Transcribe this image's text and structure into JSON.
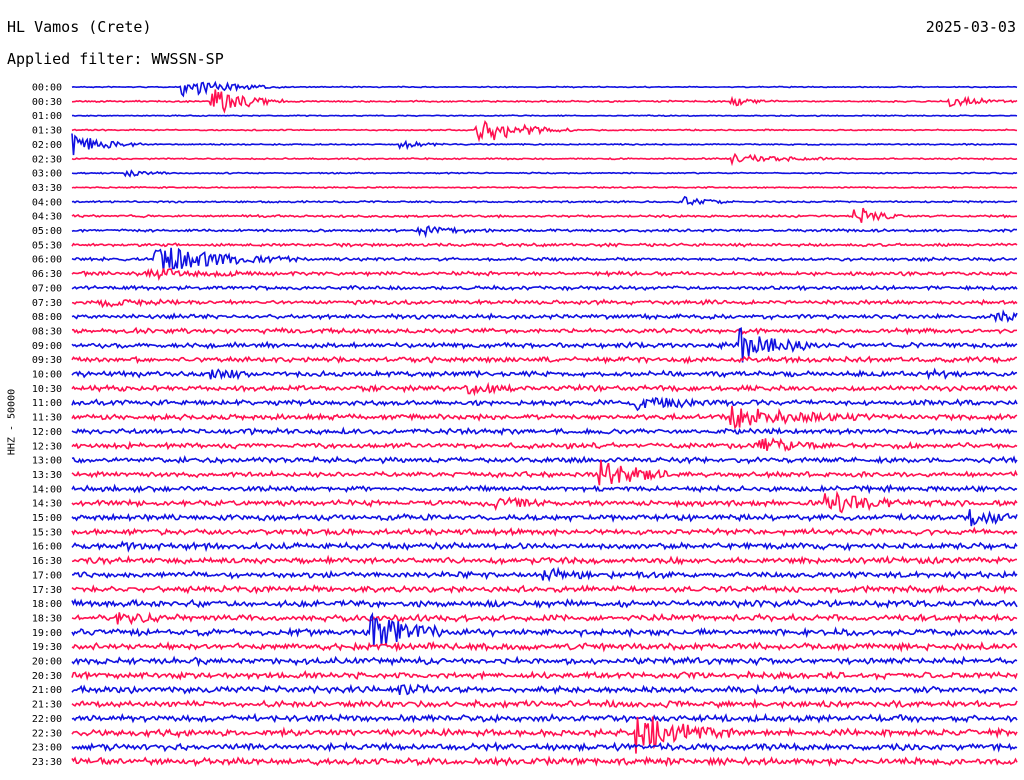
{
  "header": {
    "station": "HL Vamos (Crete)",
    "date": "2025-03-03",
    "filter": "Applied filter: WWSSN-SP",
    "channel": "HHZ - 50000"
  },
  "colors": {
    "even": "#1010e0",
    "odd": "#ff1050"
  },
  "chart_data": {
    "type": "line",
    "title": "HL Vamos (Crete)",
    "subtitle": "Applied filter: WWSSN-SP",
    "ylabel": "HHZ - 50000",
    "xlabel": "",
    "series": [
      {
        "label": "00:00",
        "noise": 0.4,
        "events": [
          {
            "t": 0.12,
            "a": 9,
            "d": 0.04
          }
        ]
      },
      {
        "label": "00:30",
        "noise": 0.6,
        "events": [
          {
            "t": 0.15,
            "a": 16,
            "d": 0.03
          },
          {
            "t": 0.7,
            "a": 4,
            "d": 0.02
          },
          {
            "t": 0.93,
            "a": 5,
            "d": 0.03
          }
        ]
      },
      {
        "label": "01:00",
        "noise": 0.4,
        "events": []
      },
      {
        "label": "01:30",
        "noise": 0.5,
        "events": [
          {
            "t": 0.43,
            "a": 15,
            "d": 0.04
          }
        ]
      },
      {
        "label": "02:00",
        "noise": 0.5,
        "events": [
          {
            "t": 0.0,
            "a": 12,
            "d": 0.03
          },
          {
            "t": 0.35,
            "a": 4,
            "d": 0.02
          }
        ]
      },
      {
        "label": "02:30",
        "noise": 0.6,
        "events": [
          {
            "t": 0.7,
            "a": 5,
            "d": 0.04
          }
        ]
      },
      {
        "label": "03:00",
        "noise": 0.5,
        "events": [
          {
            "t": 0.06,
            "a": 3,
            "d": 0.02
          }
        ]
      },
      {
        "label": "03:30",
        "noise": 0.5,
        "events": []
      },
      {
        "label": "04:00",
        "noise": 0.7,
        "events": [
          {
            "t": 0.65,
            "a": 5,
            "d": 0.02
          }
        ]
      },
      {
        "label": "04:30",
        "noise": 0.9,
        "events": [
          {
            "t": 0.83,
            "a": 10,
            "d": 0.02
          }
        ]
      },
      {
        "label": "05:00",
        "noise": 1.0,
        "events": [
          {
            "t": 0.37,
            "a": 4,
            "d": 0.03
          }
        ]
      },
      {
        "label": "05:30",
        "noise": 1.2,
        "events": []
      },
      {
        "label": "06:00",
        "noise": 1.2,
        "events": [
          {
            "t": 0.09,
            "a": 14,
            "d": 0.06
          }
        ]
      },
      {
        "label": "06:30",
        "noise": 1.5,
        "events": [
          {
            "t": 0.08,
            "a": 5,
            "d": 0.04
          }
        ]
      },
      {
        "label": "07:00",
        "noise": 1.5,
        "events": []
      },
      {
        "label": "07:30",
        "noise": 1.6,
        "events": [
          {
            "t": 0.03,
            "a": 4,
            "d": 0.03
          }
        ]
      },
      {
        "label": "08:00",
        "noise": 1.7,
        "events": [
          {
            "t": 0.98,
            "a": 5,
            "d": 0.02
          }
        ]
      },
      {
        "label": "08:30",
        "noise": 1.8,
        "events": []
      },
      {
        "label": "09:00",
        "noise": 1.9,
        "events": [
          {
            "t": 0.71,
            "a": 18,
            "d": 0.03
          }
        ]
      },
      {
        "label": "09:30",
        "noise": 2.0,
        "events": []
      },
      {
        "label": "10:00",
        "noise": 2.0,
        "events": [
          {
            "t": 0.15,
            "a": 4,
            "d": 0.02
          },
          {
            "t": 0.9,
            "a": 4,
            "d": 0.02
          }
        ]
      },
      {
        "label": "10:30",
        "noise": 2.0,
        "events": [
          {
            "t": 0.42,
            "a": 4,
            "d": 0.03
          }
        ]
      },
      {
        "label": "11:00",
        "noise": 2.0,
        "events": [
          {
            "t": 0.6,
            "a": 5,
            "d": 0.04
          }
        ]
      },
      {
        "label": "11:30",
        "noise": 2.0,
        "events": [
          {
            "t": 0.7,
            "a": 9,
            "d": 0.06
          }
        ]
      },
      {
        "label": "12:00",
        "noise": 2.0,
        "events": []
      },
      {
        "label": "12:30",
        "noise": 2.0,
        "events": [
          {
            "t": 0.73,
            "a": 8,
            "d": 0.03
          }
        ]
      },
      {
        "label": "13:00",
        "noise": 2.0,
        "events": []
      },
      {
        "label": "13:30",
        "noise": 2.0,
        "events": [
          {
            "t": 0.56,
            "a": 15,
            "d": 0.03
          }
        ]
      },
      {
        "label": "14:00",
        "noise": 2.0,
        "events": []
      },
      {
        "label": "14:30",
        "noise": 2.1,
        "events": [
          {
            "t": 0.45,
            "a": 5,
            "d": 0.03
          },
          {
            "t": 0.8,
            "a": 12,
            "d": 0.03
          }
        ]
      },
      {
        "label": "15:00",
        "noise": 2.2,
        "events": [
          {
            "t": 0.95,
            "a": 7,
            "d": 0.03
          }
        ]
      },
      {
        "label": "15:30",
        "noise": 2.2,
        "events": []
      },
      {
        "label": "16:00",
        "noise": 2.3,
        "events": [
          {
            "t": 0.05,
            "a": 3,
            "d": 0.02
          }
        ]
      },
      {
        "label": "16:30",
        "noise": 2.3,
        "events": []
      },
      {
        "label": "17:00",
        "noise": 2.3,
        "events": [
          {
            "t": 0.5,
            "a": 4,
            "d": 0.03
          }
        ]
      },
      {
        "label": "17:30",
        "noise": 2.3,
        "events": []
      },
      {
        "label": "18:00",
        "noise": 2.4,
        "events": []
      },
      {
        "label": "18:30",
        "noise": 2.4,
        "events": [
          {
            "t": 0.05,
            "a": 5,
            "d": 0.03
          }
        ]
      },
      {
        "label": "19:00",
        "noise": 2.4,
        "events": [
          {
            "t": 0.32,
            "a": 22,
            "d": 0.03
          }
        ]
      },
      {
        "label": "19:30",
        "noise": 2.4,
        "events": []
      },
      {
        "label": "20:00",
        "noise": 2.4,
        "events": []
      },
      {
        "label": "20:30",
        "noise": 2.4,
        "events": []
      },
      {
        "label": "21:00",
        "noise": 2.4,
        "events": [
          {
            "t": 0.35,
            "a": 4,
            "d": 0.02
          }
        ]
      },
      {
        "label": "21:30",
        "noise": 2.4,
        "events": []
      },
      {
        "label": "22:00",
        "noise": 2.4,
        "events": []
      },
      {
        "label": "22:30",
        "noise": 2.5,
        "events": [
          {
            "t": 0.6,
            "a": 20,
            "d": 0.04
          }
        ]
      },
      {
        "label": "23:00",
        "noise": 2.5,
        "events": []
      },
      {
        "label": "23:30",
        "noise": 2.5,
        "events": []
      }
    ]
  }
}
